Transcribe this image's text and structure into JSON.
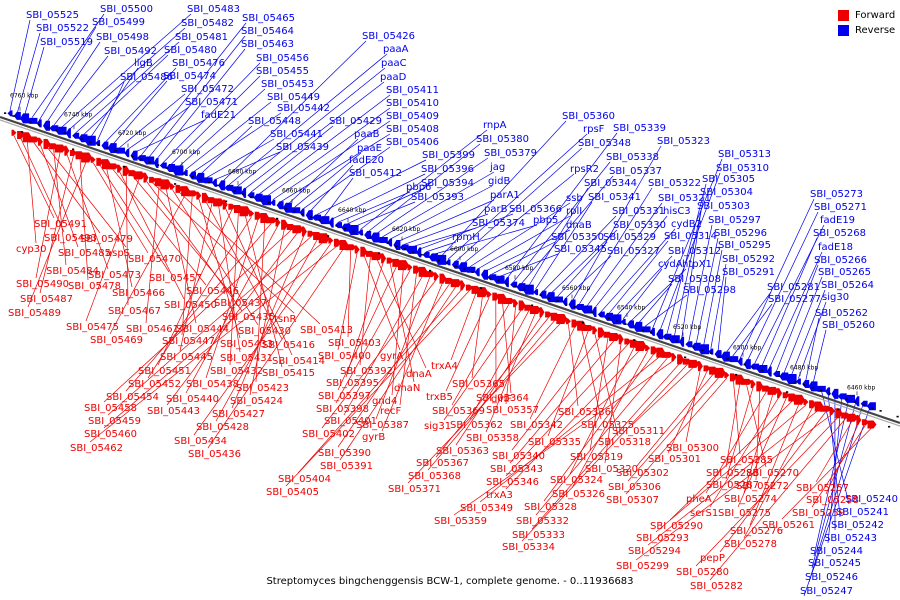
{
  "caption": "Streptomyces bingchenggensis BCW-1, complete genome. - 0..11936683",
  "legend": [
    {
      "label": "Forward",
      "color": "#ee0000"
    },
    {
      "label": "Reverse",
      "color": "#0000ee"
    }
  ],
  "colors": {
    "forward": "#ee0000",
    "reverse": "#0000ee",
    "backbone": "#555555",
    "tick_text": "#000000"
  },
  "ticks": [
    "6760 kbp",
    "6740 kbp",
    "6720 kbp",
    "6700 kbp",
    "6680 kbp",
    "6660 kbp",
    "6640 kbp",
    "6620 kbp",
    "6600 kbp",
    "6580 kbp",
    "6560 kbp",
    "6540 kbp",
    "6520 kbp",
    "6500 kbp",
    "6480 kbp",
    "6460 kbp"
  ],
  "reverse_labels": [
    "SBI_05525",
    "SBI_05522",
    "SBI_05519",
    "SBI_05500",
    "SBI_05499",
    "SBI_05498",
    "SBI_05492",
    "SBI_05483",
    "SBI_05482",
    "SBI_05481",
    "SBI_05480",
    "ligB",
    "SBI_05486",
    "SBI_05476",
    "SBI_05474",
    "SBI_05472",
    "SBI_05471",
    "fadE21",
    "SBI_05465",
    "SBI_05464",
    "SBI_05463",
    "SBI_05456",
    "SBI_05455",
    "SBI_05453",
    "SBI_05449",
    "SBI_05442",
    "SBI_05448",
    "SBI_05441",
    "SBI_05439",
    "SBI_05426",
    "paaA",
    "paaC",
    "paaD",
    "SBI_05429",
    "SBI_05411",
    "SBI_05410",
    "SBI_05409",
    "SBI_05408",
    "paaB",
    "paaE",
    "SBI_05406",
    "fadE20",
    "SBI_05399",
    "SBI_05412",
    "SBI_05396",
    "pbp6",
    "SBI_05394",
    "SBI_05393",
    "rnpA",
    "SBI_05380",
    "SBI_05379",
    "jag",
    "gidB",
    "parA1",
    "parB",
    "SBI_05374",
    "SBI_05366",
    "rpmH",
    "pbp5",
    "SBI_05360",
    "rpsF",
    "SBI_05348",
    "rpsR2",
    "ssb",
    "rplI",
    "dnaB",
    "SBI_05350",
    "SBI_05345",
    "SBI_05339",
    "SBI_05338",
    "SBI_05337",
    "SBI_05344",
    "SBI_05341",
    "SBI_05331",
    "SBI_05330",
    "SBI_05329",
    "SBI_05327",
    "SBI_05323",
    "SBI_05322",
    "SBI_05321",
    "hisC3",
    "cydB2",
    "SBI_05314",
    "SBI_05312",
    "cydA",
    "htpX1",
    "SBI_05308",
    "SBI_05298",
    "SBI_05313",
    "SBI_05310",
    "SBI_05305",
    "SBI_05304",
    "SBI_05303",
    "SBI_05297",
    "SBI_05296",
    "SBI_05295",
    "SBI_05292",
    "SBI_05291",
    "SBI_05281",
    "SBI_05277",
    "SBI_05273",
    "SBI_05271",
    "fadE19",
    "SBI_05268",
    "fadE18",
    "SBI_05266",
    "SBI_05265",
    "SBI_05264",
    "sig30",
    "SBI_05262",
    "SBI_05260",
    "SBI_05240",
    "SBI_05241",
    "SBI_05242",
    "SBI_05243",
    "SBI_05244",
    "SBI_05245",
    "SBI_05246",
    "SBI_05247"
  ],
  "forward_labels": [
    "SBI_05491",
    "SBI_05493",
    "cyp30",
    "SBI_05479",
    "SBI_05485",
    "aspS",
    "SBI_05484",
    "SBI_05490",
    "SBI_05473",
    "SBI_05487",
    "SBI_05478",
    "SBI_05489",
    "SBI_05470",
    "SBI_05457",
    "SBI_05466",
    "SBI_05446",
    "SBI_05450",
    "SBI_05467",
    "SBI_05437",
    "SBI_05475",
    "SBI_05435",
    "tsnR",
    "SBI_05461",
    "SBI_05444",
    "SBI_05430",
    "SBI_05413",
    "SBI_05469",
    "SBI_05447",
    "SBI_05433",
    "SBI_05416",
    "SBI_05445",
    "SBI_05431",
    "SBI_05414",
    "SBI_05451",
    "SBI_05432",
    "SBI_05415",
    "SBI_05452",
    "SBI_05438",
    "SBI_05423",
    "SBI_05454",
    "SBI_05440",
    "SBI_05424",
    "SBI_05458",
    "SBI_05443",
    "SBI_05427",
    "SBI_05459",
    "SBI_05428",
    "SBI_05460",
    "SBI_05434",
    "SBI_05462",
    "SBI_05436",
    "SBI_05403",
    "SBI_05400",
    "gyrA",
    "SBI_05392",
    "dnaA",
    "SBI_05395",
    "dnaN",
    "SBI_05397",
    "gnd4",
    "SBI_05398",
    "recF",
    "SBI_05401",
    "SBI_05387",
    "SBI_05402",
    "gyrB",
    "SBI_05390",
    "SBI_05391",
    "SBI_05404",
    "SBI_05405",
    "trxA4",
    "SBI_05365",
    "trxB5",
    "SBI_05364",
    "dinF",
    "SBI_05369",
    "SBI_05357",
    "sig31",
    "SBI_05362",
    "SBI_05358",
    "SBI_05363",
    "SBI_05367",
    "SBI_05368",
    "SBI_05371",
    "SBI_05336",
    "SBI_05342",
    "SBI_05325",
    "SBI_05335",
    "SBI_05318",
    "SBI_05340",
    "SBI_05319",
    "SBI_05343",
    "SBI_05320",
    "SBI_05346",
    "SBI_05324",
    "trxA3",
    "SBI_05326",
    "SBI_05328",
    "SBI_05349",
    "SBI_05332",
    "SBI_05359",
    "SBI_05333",
    "SBI_05334",
    "SBI_05311",
    "SBI_05300",
    "SBI_05301",
    "SBI_05302",
    "SBI_05306",
    "SBI_05307",
    "SBI_05285",
    "SBI_05286",
    "SBI_05270",
    "SBI_05287",
    "SBI_05272",
    "pheA",
    "SBI_05274",
    "serS1",
    "SBI_05275",
    "SBI_05290",
    "SBI_05276",
    "SBI_05293",
    "SBI_05278",
    "SBI_05294",
    "pepP",
    "SBI_05299",
    "SBI_05280",
    "SBI_05282",
    "SBI_05257",
    "SBI_05258",
    "SBI_05259",
    "SBI_05261"
  ]
}
